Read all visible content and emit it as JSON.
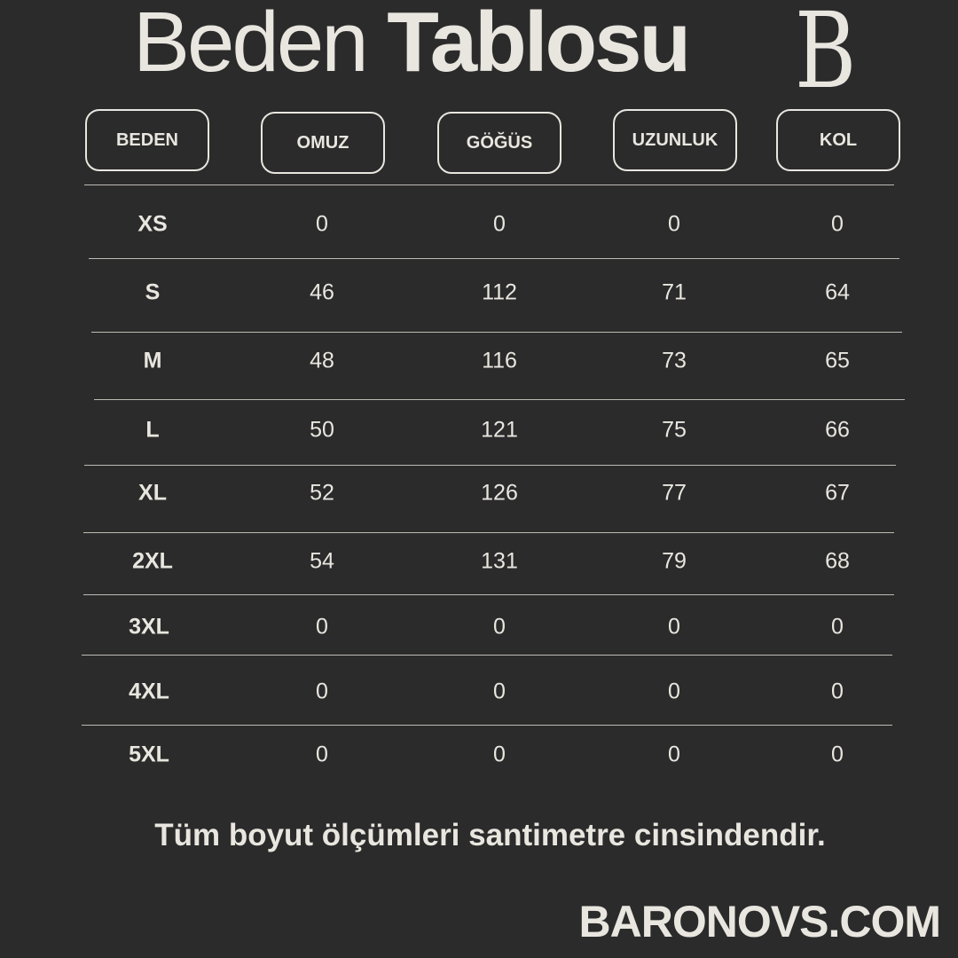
{
  "title": {
    "light": "Beden",
    "bold": "Tablosu"
  },
  "logo": "B",
  "headers": [
    "BEDEN",
    "OMUZ",
    "GÖĞÜS",
    "UZUNLUK",
    "KOL"
  ],
  "rows": [
    [
      "XS",
      "0",
      "0",
      "0",
      "0"
    ],
    [
      "S",
      "46",
      "112",
      "71",
      "64"
    ],
    [
      "M",
      "48",
      "116",
      "73",
      "65"
    ],
    [
      "L",
      "50",
      "121",
      "75",
      "66"
    ],
    [
      "XL",
      "52",
      "126",
      "77",
      "67"
    ],
    [
      "2XL",
      "54",
      "131",
      "79",
      "68"
    ],
    [
      "3XL",
      "0",
      "0",
      "0",
      "0"
    ],
    [
      "4XL",
      "0",
      "0",
      "0",
      "0"
    ],
    [
      "5XL",
      "0",
      "0",
      "0",
      "0"
    ]
  ],
  "note": "Tüm boyut ölçümleri santimetre cinsindendir.",
  "brand": "BARONOVS.COM",
  "colors": {
    "background": "#2b2b2b",
    "text": "#e8e6df"
  }
}
